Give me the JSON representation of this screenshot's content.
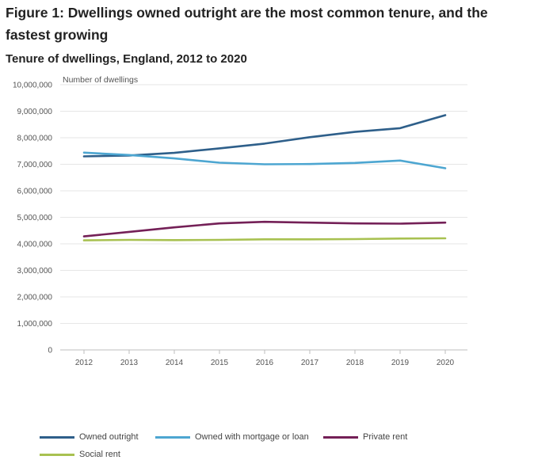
{
  "figure": {
    "title": "Figure 1: Dwellings owned outright are the most common tenure, and the fastest growing"
  },
  "chart_data": {
    "type": "line",
    "title": "Tenure of dwellings, England, 2012 to 2020",
    "ylabel": "Number of dwellings",
    "xlabel": "",
    "x": [
      "2012",
      "2013",
      "2014",
      "2015",
      "2016",
      "2017",
      "2018",
      "2019",
      "2020"
    ],
    "ylim": [
      0,
      10000000
    ],
    "yticks": [
      0,
      1000000,
      2000000,
      3000000,
      4000000,
      5000000,
      6000000,
      7000000,
      8000000,
      9000000,
      10000000
    ],
    "ytick_labels": [
      "0",
      "1,000,000",
      "2,000,000",
      "3,000,000",
      "4,000,000",
      "5,000,000",
      "6,000,000",
      "7,000,000",
      "8,000,000",
      "9,000,000",
      "10,000,000"
    ],
    "grid": true,
    "legend_position": "bottom",
    "series": [
      {
        "name": "Owned outright",
        "color": "#2e5f8a",
        "values": [
          7300000,
          7330000,
          7430000,
          7600000,
          7780000,
          8020000,
          8220000,
          8360000,
          8850000
        ]
      },
      {
        "name": "Owned with mortgage or loan",
        "color": "#4da6d1",
        "values": [
          7440000,
          7350000,
          7220000,
          7060000,
          7000000,
          7010000,
          7050000,
          7140000,
          6850000
        ]
      },
      {
        "name": "Private rent",
        "color": "#742057",
        "values": [
          4280000,
          4450000,
          4620000,
          4770000,
          4830000,
          4800000,
          4770000,
          4760000,
          4800000
        ]
      },
      {
        "name": "Social rent",
        "color": "#a8c151",
        "values": [
          4130000,
          4150000,
          4140000,
          4150000,
          4170000,
          4170000,
          4180000,
          4200000,
          4210000
        ]
      }
    ]
  }
}
